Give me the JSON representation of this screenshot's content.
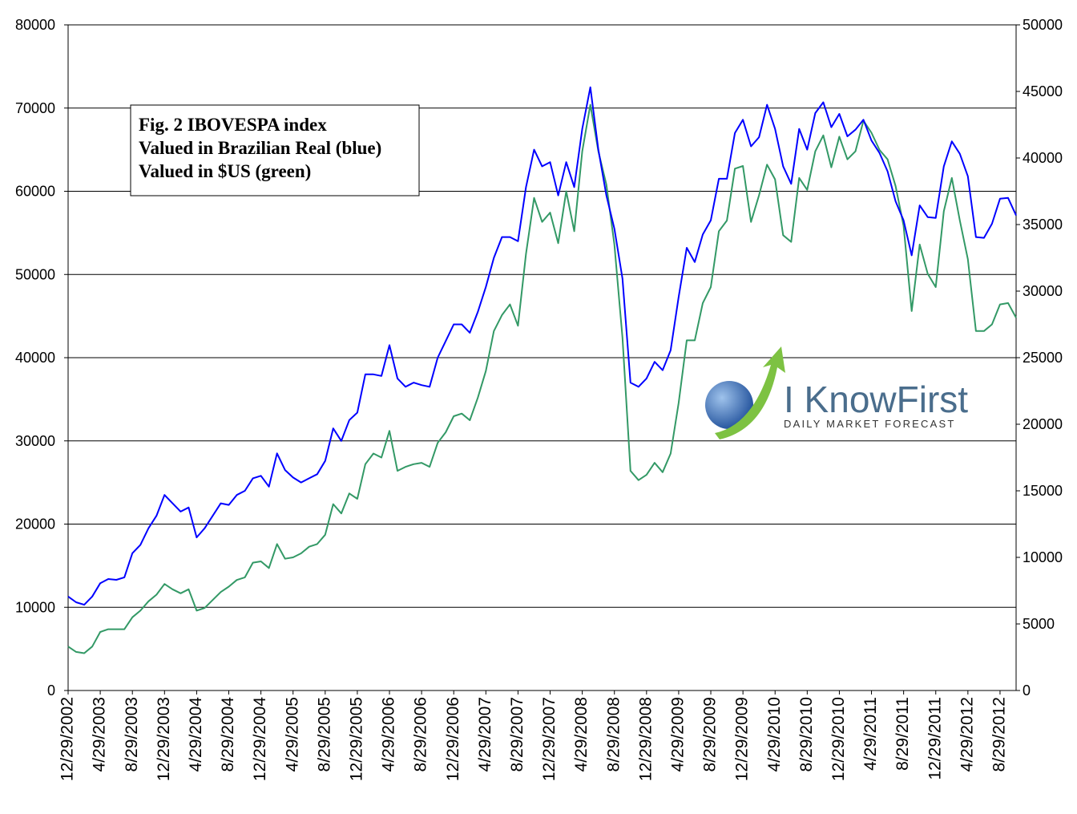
{
  "chart_data": {
    "type": "line",
    "annotation": [
      "Fig. 2 IBOVESPA index",
      "Valued in Brazilian Real (blue)",
      "Valued in $US (green)"
    ],
    "categories": [
      "12/29/2002",
      null,
      null,
      null,
      "4/29/2003",
      null,
      null,
      null,
      "8/29/2003",
      null,
      null,
      null,
      "12/29/2003",
      null,
      null,
      null,
      "4/29/2004",
      null,
      null,
      null,
      "8/29/2004",
      null,
      null,
      null,
      "12/29/2004",
      null,
      null,
      null,
      "4/29/2005",
      null,
      null,
      null,
      "8/29/2005",
      null,
      null,
      null,
      "12/29/2005",
      null,
      null,
      null,
      "4/29/2006",
      null,
      null,
      null,
      "8/29/2006",
      null,
      null,
      null,
      "12/29/2006",
      null,
      null,
      null,
      "4/29/2007",
      null,
      null,
      null,
      "8/29/2007",
      null,
      null,
      null,
      "12/29/2007",
      null,
      null,
      null,
      "4/29/2008",
      null,
      null,
      null,
      "8/29/2008",
      null,
      null,
      null,
      "12/29/2008",
      null,
      null,
      null,
      "4/29/2009",
      null,
      null,
      null,
      "8/29/2009",
      null,
      null,
      null,
      "12/29/2009",
      null,
      null,
      null,
      "4/29/2010",
      null,
      null,
      null,
      "8/29/2010",
      null,
      null,
      null,
      "12/29/2010",
      null,
      null,
      null,
      "4/29/2011",
      null,
      null,
      null,
      "8/29/2011",
      null,
      null,
      null,
      "12/29/2011",
      null,
      null,
      null,
      "4/29/2012",
      null,
      null,
      null,
      "8/29/2012",
      null,
      null
    ],
    "series": [
      {
        "color": "#0000ff",
        "values": [
          11300,
          10600,
          10300,
          11300,
          12900,
          13400,
          13300,
          13600,
          16500,
          17500,
          19500,
          21000,
          23500,
          22500,
          21500,
          22000,
          18400,
          19500,
          21000,
          22500,
          22300,
          23500,
          24000,
          25500,
          25800,
          24500,
          28500,
          26500,
          25600,
          25000,
          25500,
          26000,
          27600,
          31500,
          30000,
          32500,
          33400,
          38000,
          38000,
          37800,
          41500,
          37500,
          36500,
          37000,
          36700,
          36500,
          40000,
          42000,
          44000,
          44000,
          43000,
          45500,
          48500,
          52000,
          54500,
          54500,
          54000,
          60500,
          65000,
          63000,
          63500,
          59500,
          63500,
          60500,
          67500,
          72500,
          65000,
          59500,
          55500,
          49500,
          37000,
          36500,
          37500,
          39500,
          38500,
          40900,
          47300,
          53200,
          51500,
          54800,
          56500,
          61500,
          61500,
          67000,
          68600,
          65400,
          66500,
          70400,
          67500,
          63000,
          60900,
          67500,
          65000,
          69400,
          70700,
          67700,
          69300,
          66600,
          67400,
          68600,
          66100,
          64600,
          62400,
          58800,
          56500,
          52300,
          58300,
          56900,
          56800,
          63000,
          66000,
          64500,
          61800,
          54500,
          54400,
          56100,
          59100,
          59200,
          57100
        ]
      },
      {
        "color": "#339966",
        "axis": "y2",
        "values": [
          3300,
          2900,
          2800,
          3300,
          4400,
          4600,
          4600,
          4600,
          5500,
          6000,
          6700,
          7200,
          8000,
          7600,
          7300,
          7600,
          6000,
          6200,
          6800,
          7400,
          7800,
          8300,
          8500,
          9600,
          9700,
          9200,
          11000,
          9900,
          10000,
          10300,
          10800,
          11000,
          11700,
          14000,
          13300,
          14800,
          14400,
          17000,
          17800,
          17500,
          19500,
          16500,
          16800,
          17000,
          17100,
          16800,
          18600,
          19400,
          20600,
          20800,
          20300,
          22000,
          24000,
          27000,
          28200,
          29000,
          27400,
          32800,
          37000,
          35200,
          35900,
          33600,
          37500,
          34500,
          40500,
          44000,
          40500,
          38000,
          33500,
          26500,
          16500,
          15800,
          16200,
          17100,
          16400,
          17800,
          21600,
          26300,
          26300,
          29100,
          30300,
          34500,
          35300,
          39200,
          39400,
          35200,
          37200,
          39500,
          38400,
          34200,
          33700,
          38500,
          37600,
          40500,
          41700,
          39300,
          41600,
          39900,
          40500,
          42800,
          41900,
          40600,
          39900,
          37900,
          34900,
          28500,
          33500,
          31300,
          30300,
          36000,
          38500,
          35300,
          32400,
          27000,
          27000,
          27500,
          29000,
          29100,
          28000
        ]
      }
    ],
    "ylim": [
      0,
      80000
    ],
    "yticks": [
      0,
      10000,
      20000,
      30000,
      40000,
      50000,
      60000,
      70000,
      80000
    ],
    "y2lim": [
      0,
      50000
    ],
    "y2ticks": [
      0,
      5000,
      10000,
      15000,
      20000,
      25000,
      30000,
      35000,
      40000,
      45000,
      50000
    ],
    "grid": true
  },
  "logo": {
    "title": "I KnowFirst",
    "subtitle": "DAILY MARKET FORECAST"
  }
}
